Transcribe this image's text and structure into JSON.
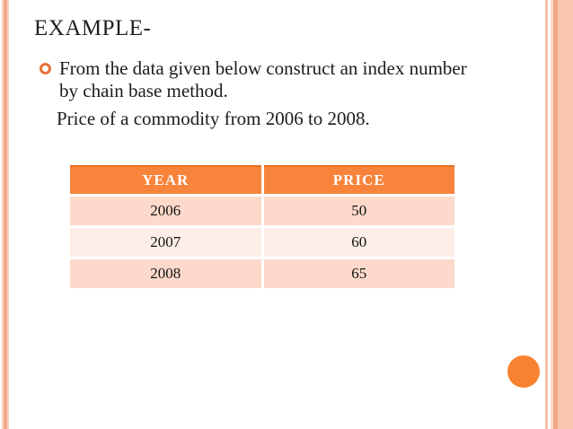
{
  "slide": {
    "title": "EXAMPLE-",
    "bullet_text": "From the data given below construct an index number  by chain base method.",
    "subtitle": "Price of a commodity from 2006 to 2008."
  },
  "table": {
    "headers": [
      "YEAR",
      "PRICE"
    ],
    "rows": [
      [
        "2006",
        "50"
      ],
      [
        "2007",
        "60"
      ],
      [
        "2008",
        "65"
      ]
    ]
  },
  "colors": {
    "accent_orange": "#f8822f",
    "table_header_bg": "#f8843c",
    "table_header_top_line": "#e8701f",
    "row_shade_dark": "#fcd9ca",
    "row_shade_light": "#fdeee7",
    "bullet_ring": "#e8713a",
    "stripe_salmon": "#f3a98a",
    "text": "#1c1c1c"
  }
}
